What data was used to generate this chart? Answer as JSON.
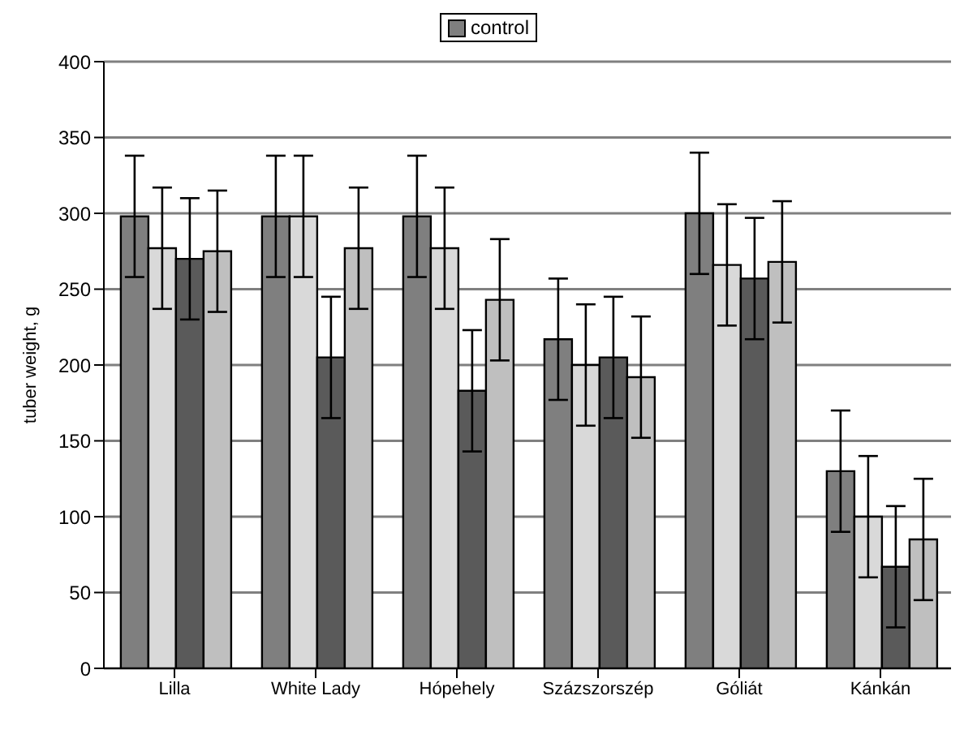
{
  "chart_data": {
    "type": "bar",
    "ylabel": "tuber weight, g",
    "categories": [
      "Lilla",
      "White Lady",
      "Hópehely",
      "Százszorszép",
      "Góliát",
      "Kánkán"
    ],
    "series": [
      {
        "name": "control",
        "color": "#7f7f7f",
        "values": [
          298,
          298,
          298,
          217,
          300,
          130
        ],
        "errors": [
          40,
          40,
          40,
          40,
          40,
          40
        ]
      },
      {
        "color": "#d9d9d9",
        "values": [
          277,
          298,
          277,
          200,
          266,
          100
        ],
        "errors": [
          40,
          40,
          40,
          40,
          40,
          40
        ]
      },
      {
        "color": "#5a5a5a",
        "values": [
          270,
          205,
          183,
          205,
          257,
          67
        ],
        "errors": [
          40,
          40,
          40,
          40,
          40,
          40
        ]
      },
      {
        "color": "#bfbfbf",
        "values": [
          275,
          277,
          243,
          192,
          268,
          85
        ],
        "errors": [
          40,
          40,
          40,
          40,
          40,
          40
        ]
      }
    ],
    "ylim": [
      0,
      400
    ],
    "yticks": [
      0,
      50,
      100,
      150,
      200,
      250,
      300,
      350,
      400
    ],
    "grid": "y",
    "legend": "top"
  }
}
